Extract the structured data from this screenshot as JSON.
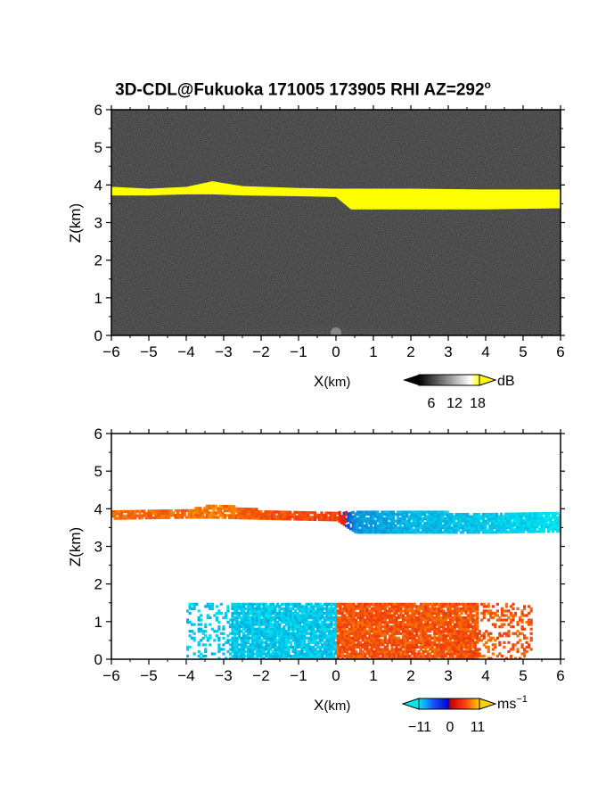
{
  "title": {
    "main": "3D-CDL@Fukuoka 171005 173905 RHI AZ=292",
    "degree_mark": "o"
  },
  "chart_data": [
    {
      "type": "heatmap",
      "panel": "top",
      "quantity": "signal intensity",
      "xlabel_main": "X",
      "xlabel_unit": "(km)",
      "ylabel": "Z(km)",
      "xlim": [
        -6,
        6
      ],
      "ylim": [
        0,
        6
      ],
      "xticks": [
        "-6",
        "-5",
        "-4",
        "-3",
        "-2",
        "-1",
        "0",
        "1",
        "2",
        "3",
        "4",
        "5",
        "6"
      ],
      "yticks": [
        "0",
        "1",
        "2",
        "3",
        "4",
        "5",
        "6"
      ],
      "background_color": "#2e2e2e",
      "layer_color": "#ffff00",
      "cloud_layer": {
        "x": [
          -6,
          -5,
          -4,
          -3.3,
          -2.5,
          -1,
          0,
          0.4,
          2,
          4,
          6
        ],
        "z_top": [
          3.95,
          3.9,
          3.95,
          4.1,
          3.97,
          3.92,
          3.9,
          3.9,
          3.9,
          3.88,
          3.88
        ],
        "z_bottom": [
          3.72,
          3.72,
          3.75,
          3.75,
          3.72,
          3.7,
          3.68,
          3.35,
          3.35,
          3.35,
          3.38
        ]
      },
      "colorbar": {
        "ticks": [
          "6",
          "12",
          "18"
        ],
        "unit": "dB",
        "colors": [
          "#000000",
          "#ffffff",
          "#ffff00"
        ]
      }
    },
    {
      "type": "heatmap",
      "panel": "bottom",
      "quantity": "Doppler velocity",
      "xlabel_main": "X",
      "xlabel_unit": "(km)",
      "ylabel": "Z(km)",
      "xlim": [
        -6,
        6
      ],
      "ylim": [
        0,
        6
      ],
      "xticks": [
        "-6",
        "-5",
        "-4",
        "-3",
        "-2",
        "-1",
        "0",
        "1",
        "2",
        "3",
        "4",
        "5",
        "6"
      ],
      "yticks": [
        "0",
        "1",
        "2",
        "3",
        "4",
        "5",
        "6"
      ],
      "cloud_layer": {
        "x": [
          -6,
          -4,
          -3.3,
          -2,
          0,
          0.5,
          2,
          4,
          6
        ],
        "z_top": [
          3.95,
          3.95,
          4.1,
          3.95,
          3.9,
          3.9,
          3.9,
          3.88,
          3.88
        ],
        "z_bottom": [
          3.72,
          3.75,
          3.75,
          3.72,
          3.68,
          3.35,
          3.35,
          3.35,
          3.38
        ],
        "velocity_ms": [
          7,
          7,
          8,
          6,
          5,
          -6,
          -8,
          -9,
          -11
        ]
      },
      "boundary_layer": {
        "x_start": -4.0,
        "x_end": 5.2,
        "z_top": 1.5,
        "velocity_left_ms": -9,
        "velocity_right_ms": 6
      },
      "colorbar": {
        "ticks": [
          "−11",
          "0",
          "11"
        ],
        "unit_main": "ms",
        "unit_exp": "−1",
        "colors": [
          "#00e0f0",
          "#1a4cff",
          "#ff2020",
          "#ffd000"
        ]
      }
    }
  ]
}
